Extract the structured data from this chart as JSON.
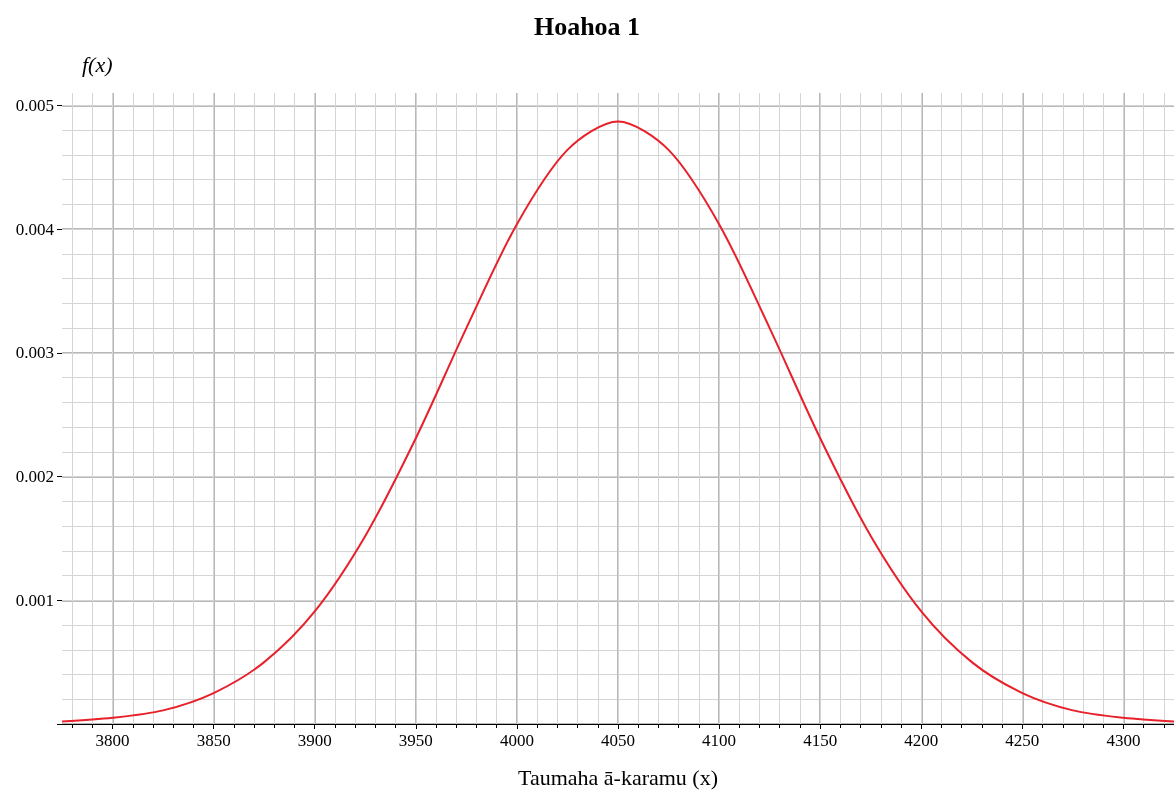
{
  "chart_data": {
    "type": "line",
    "title": "Hoahoa 1",
    "xlabel": "Taumaha ā-karamu (x)",
    "ylabel": "f(x)",
    "x": [
      3775,
      3800,
      3825,
      3850,
      3875,
      3900,
      3925,
      3950,
      3975,
      4000,
      4025,
      4050,
      4075,
      4100,
      4125,
      4150,
      4175,
      4200,
      4225,
      4250,
      4275,
      4300,
      4325
    ],
    "series": [
      {
        "color": "#e8202a",
        "values": [
          2e-05,
          5e-05,
          0.00011,
          0.00025,
          0.0005,
          0.00091,
          0.00152,
          0.00231,
          0.0032,
          0.00404,
          0.00464,
          0.00487,
          0.00464,
          0.00404,
          0.0032,
          0.00231,
          0.00152,
          0.00091,
          0.0005,
          0.00025,
          0.00011,
          5e-05,
          2e-05
        ]
      }
    ],
    "xlim": [
      3775,
      4325
    ],
    "xticks": [
      3800,
      3850,
      3900,
      3950,
      4000,
      4050,
      4100,
      4150,
      4200,
      4250,
      4300
    ],
    "ylim": [
      0,
      0.0051
    ],
    "yticks": [
      {
        "value": 0,
        "label": null
      },
      0.001,
      0.002,
      0.003,
      0.004,
      0.005
    ],
    "grid": true,
    "marker": "none",
    "line_style": "solid"
  }
}
